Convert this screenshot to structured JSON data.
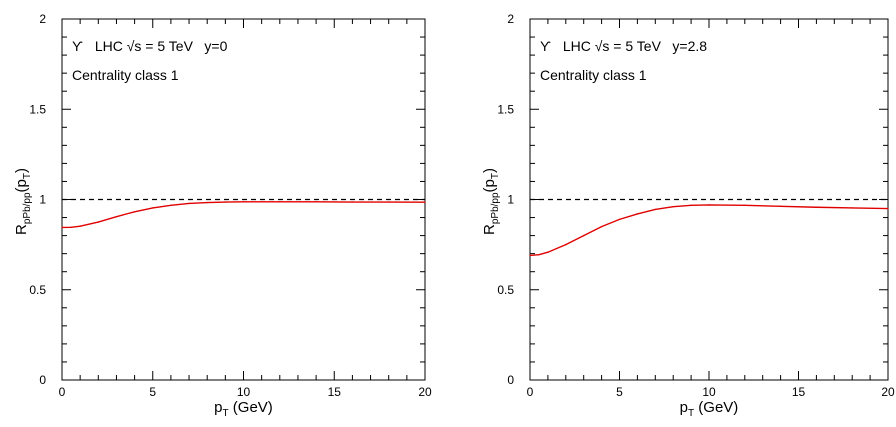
{
  "chart_data": [
    {
      "type": "line",
      "annotation": {
        "symbol": "ϒ",
        "line1_text": "LHC √s = 5 TeV",
        "rapidity": "y=0",
        "line2": "Centrality class 1"
      },
      "ylabel": {
        "main": "R",
        "sub": "pPb/pp",
        "arg_open": "(p",
        "arg_sub": "T",
        "arg_close": ")"
      },
      "xlabel": {
        "main": "p",
        "sub": "T",
        "unit": " (GeV)"
      },
      "xlim": [
        0,
        20
      ],
      "ylim": [
        0,
        2
      ],
      "x_ticks": [
        0,
        5,
        10,
        15,
        20
      ],
      "y_ticks": [
        0,
        0.5,
        1,
        1.5,
        2
      ],
      "x_tick_labels": [
        "0",
        "5",
        "10",
        "15",
        "20"
      ],
      "y_tick_labels": [
        "0",
        "0.5",
        "1",
        "1.5",
        "2"
      ],
      "reference_line": {
        "y": 1,
        "style": "dashed",
        "color": "#000000"
      },
      "series": [
        {
          "color": "#e00000",
          "x": [
            0,
            0.5,
            1,
            2,
            3,
            4,
            5,
            6,
            7,
            8,
            9,
            10,
            12,
            14,
            16,
            18,
            20
          ],
          "y": [
            0.845,
            0.846,
            0.852,
            0.875,
            0.905,
            0.932,
            0.953,
            0.968,
            0.978,
            0.983,
            0.986,
            0.987,
            0.987,
            0.987,
            0.986,
            0.986,
            0.985
          ]
        }
      ]
    },
    {
      "type": "line",
      "annotation": {
        "symbol": "ϒ",
        "line1_text": "LHC √s = 5 TeV",
        "rapidity": "y=2.8",
        "line2": "Centrality class 1"
      },
      "ylabel": {
        "main": "R",
        "sub": "pPb/pp",
        "arg_open": "(p",
        "arg_sub": "T",
        "arg_close": ")"
      },
      "xlabel": {
        "main": "p",
        "sub": "T",
        "unit": " (GeV)"
      },
      "xlim": [
        0,
        20
      ],
      "ylim": [
        0,
        2
      ],
      "x_ticks": [
        0,
        5,
        10,
        15,
        20
      ],
      "y_ticks": [
        0,
        0.5,
        1,
        1.5,
        2
      ],
      "x_tick_labels": [
        "0",
        "5",
        "10",
        "15",
        "20"
      ],
      "y_tick_labels": [
        "0",
        "0.5",
        "1",
        "1.5",
        "2"
      ],
      "reference_line": {
        "y": 1,
        "style": "dashed",
        "color": "#000000"
      },
      "series": [
        {
          "color": "#e00000",
          "x": [
            0,
            0.5,
            1,
            2,
            3,
            4,
            5,
            6,
            7,
            8,
            9,
            10,
            12,
            14,
            16,
            18,
            20
          ],
          "y": [
            0.69,
            0.694,
            0.708,
            0.75,
            0.8,
            0.85,
            0.89,
            0.92,
            0.945,
            0.96,
            0.968,
            0.97,
            0.968,
            0.962,
            0.957,
            0.953,
            0.95
          ]
        }
      ]
    }
  ]
}
